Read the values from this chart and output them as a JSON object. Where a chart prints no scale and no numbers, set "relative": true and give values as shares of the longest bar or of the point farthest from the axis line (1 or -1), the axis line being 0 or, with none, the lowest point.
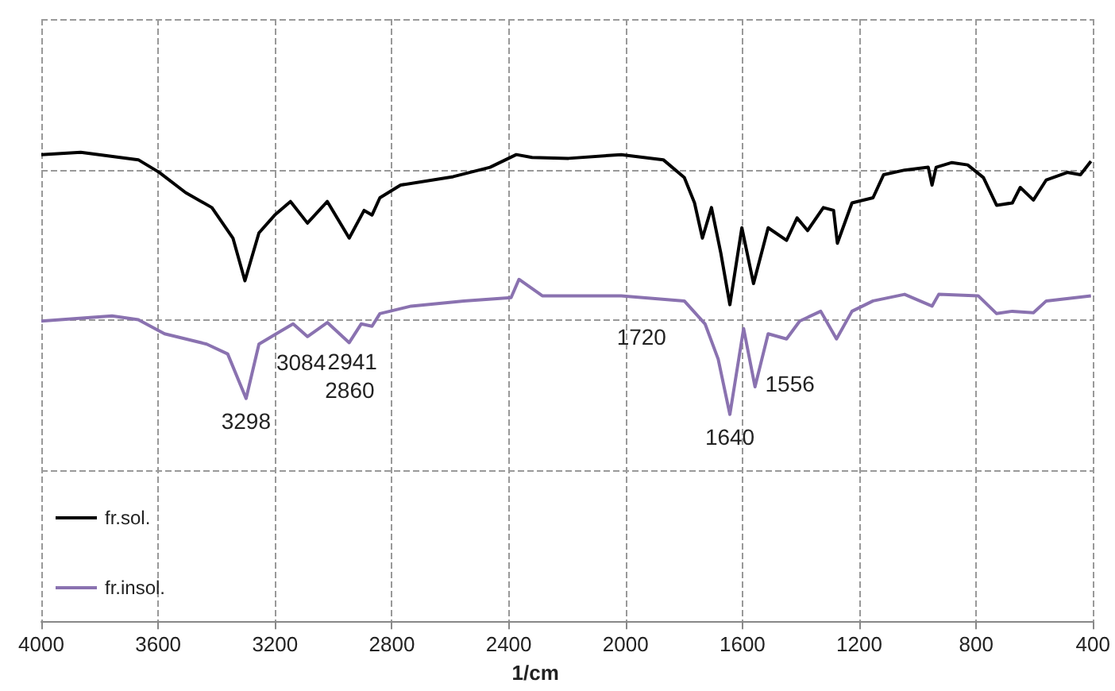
{
  "chart_data": {
    "type": "line",
    "relative": true,
    "xlabel": "1/cm",
    "xlim": [
      4000,
      400
    ],
    "xticks": [
      4000,
      3600,
      3200,
      2800,
      2400,
      2000,
      1600,
      1200,
      800,
      400
    ],
    "grid": true,
    "legend": "bottom left",
    "marker": "none",
    "line_style": "solid",
    "series": [
      {
        "name": "fr.sol.",
        "color": "#000000",
        "x": [
          4000,
          3865,
          3668,
          3596,
          3506,
          3416,
          3344,
          3303,
          3255,
          3201,
          3147,
          3089,
          3021,
          2946,
          2895,
          2868,
          2841,
          2770,
          2590,
          2464,
          2374,
          2320,
          2195,
          2015,
          1871,
          1799,
          1764,
          1737,
          1706,
          1674,
          1643,
          1602,
          1562,
          1512,
          1449,
          1413,
          1377,
          1323,
          1288,
          1275,
          1225,
          1153,
          1117,
          1045,
          964,
          951,
          937,
          883,
          829,
          775,
          730,
          676,
          649,
          604,
          560,
          488,
          443,
          407
        ],
        "values": [
          0.995,
          1.0,
          0.984,
          0.957,
          0.914,
          0.882,
          0.817,
          0.726,
          0.828,
          0.866,
          0.895,
          0.849,
          0.895,
          0.817,
          0.876,
          0.866,
          0.903,
          0.93,
          0.948,
          0.968,
          0.995,
          0.989,
          0.987,
          0.995,
          0.984,
          0.946,
          0.892,
          0.817,
          0.882,
          0.785,
          0.675,
          0.839,
          0.72,
          0.839,
          0.812,
          0.86,
          0.833,
          0.882,
          0.876,
          0.806,
          0.892,
          0.903,
          0.952,
          0.962,
          0.968,
          0.93,
          0.968,
          0.978,
          0.973,
          0.946,
          0.887,
          0.892,
          0.925,
          0.898,
          0.941,
          0.957,
          0.952,
          0.981
        ]
      },
      {
        "name": "fr.insol.",
        "color": "#8a72b0",
        "x": [
          4000,
          3758,
          3668,
          3578,
          3434,
          3362,
          3299,
          3255,
          3182,
          3138,
          3089,
          3021,
          2946,
          2905,
          2868,
          2841,
          2734,
          2554,
          2392,
          2365,
          2285,
          2195,
          2015,
          1799,
          1728,
          1683,
          1643,
          1596,
          1557,
          1512,
          1449,
          1404,
          1332,
          1278,
          1225,
          1153,
          1045,
          951,
          928,
          793,
          730,
          676,
          604,
          560,
          407
        ],
        "values": [
          0.64,
          0.651,
          0.643,
          0.613,
          0.591,
          0.57,
          0.475,
          0.591,
          0.618,
          0.634,
          0.607,
          0.637,
          0.594,
          0.634,
          0.629,
          0.656,
          0.672,
          0.683,
          0.69,
          0.729,
          0.694,
          0.694,
          0.694,
          0.683,
          0.634,
          0.559,
          0.441,
          0.624,
          0.5,
          0.613,
          0.602,
          0.64,
          0.661,
          0.602,
          0.661,
          0.683,
          0.697,
          0.672,
          0.697,
          0.694,
          0.656,
          0.661,
          0.658,
          0.683,
          0.694
        ]
      }
    ],
    "annotations": [
      {
        "text": "3298",
        "x": 3299,
        "y": 0.475
      },
      {
        "text": "3084",
        "x": 3089,
        "y": 0.607
      },
      {
        "text": "2941",
        "x": 2946,
        "y": 0.594
      },
      {
        "text": "2860",
        "x": 2868,
        "y": 0.629
      },
      {
        "text": "1720",
        "x": 1728,
        "y": 0.634
      },
      {
        "text": "1640",
        "x": 1643,
        "y": 0.441
      },
      {
        "text": "1556",
        "x": 1557,
        "y": 0.5
      }
    ]
  }
}
